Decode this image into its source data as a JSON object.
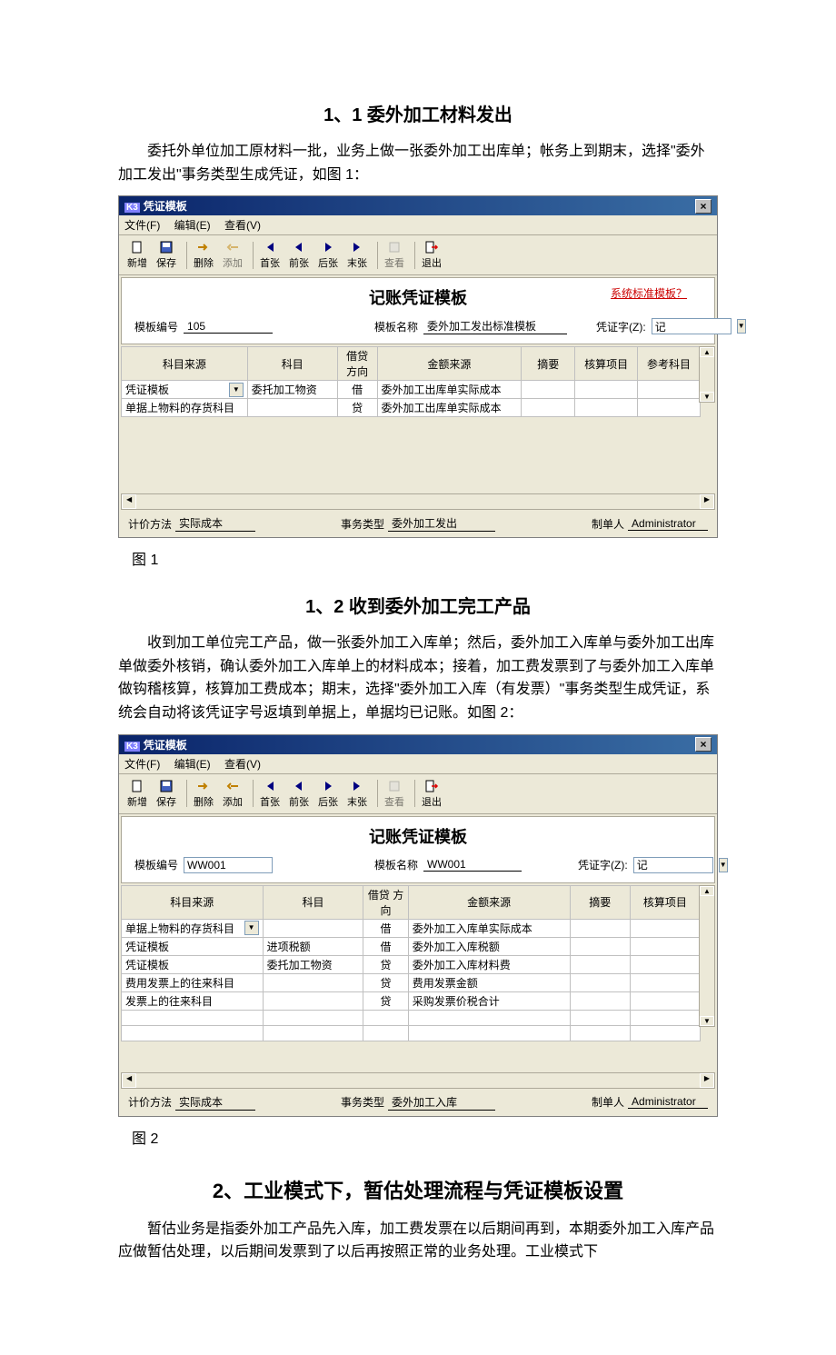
{
  "doc": {
    "heading1": "1、1 委外加工材料发出",
    "para1": "委托外单位加工原材料一批，业务上做一张委外加工出库单；帐务上到期末，选择\"委外加工发出\"事务类型生成凭证，如图 1：",
    "caption1": "图 1",
    "heading2": "1、2 收到委外加工完工产品",
    "para2": "收到加工单位完工产品，做一张委外加工入库单；然后，委外加工入库单与委外加工出库单做委外核销，确认委外加工入库单上的材料成本；接着，加工费发票到了与委外加工入库单做钩稽核算，核算加工费成本；期末，选择\"委外加工入库（有发票）\"事务类型生成凭证，系统会自动将该凭证字号返填到单据上，单据均已记账。如图 2：",
    "caption2": "图 2",
    "heading3": "2、工业模式下，暂估处理流程与凭证模板设置",
    "para3": "暂估业务是指委外加工产品先入库，加工费发票在以后期间再到，本期委外加工入库产品应做暂估处理，以后期间发票到了以后再按照正常的业务处理。工业模式下"
  },
  "app": {
    "title": "凭证模板",
    "menu": {
      "file": "文件(F)",
      "edit": "编辑(E)",
      "view": "查看(V)"
    },
    "toolbar": {
      "new": "新增",
      "save": "保存",
      "delete": "删除",
      "add": "添加",
      "first": "首张",
      "prev": "前张",
      "next": "后张",
      "last": "末张",
      "rename": "查看",
      "exit": "退出"
    },
    "bigtitle": "记账凭证模板",
    "syslink": "系统标准模板？",
    "form": {
      "templ_no_label": "模板编号",
      "templ_name_label": "模板名称",
      "voucher_word_label": "凭证字(Z):",
      "voucher_word_value": "记"
    },
    "grid_headers": {
      "subject_source": "科目来源",
      "subject": "科目",
      "dc": "借贷\n方向",
      "amount_source": "金额来源",
      "summary": "摘要",
      "account_item": "核算项目",
      "ref_subject": "参考科目"
    },
    "footer": {
      "method_label": "计价方法",
      "method_value": "实际成本",
      "type_label": "事务类型",
      "maker_label": "制单人",
      "maker_value": "Administrator"
    }
  },
  "win1": {
    "templ_no": "105",
    "templ_name": "委外加工发出标准模板",
    "rows": [
      {
        "src": "凭证模板",
        "subject": "委托加工物资",
        "dc": "借",
        "amt": "委外加工出库单实际成本"
      },
      {
        "src": "单据上物料的存货科目",
        "subject": "",
        "dc": "贷",
        "amt": "委外加工出库单实际成本"
      }
    ],
    "type_value": "委外加工发出"
  },
  "win2": {
    "templ_no": "WW001",
    "templ_name": "WW001",
    "rows": [
      {
        "src": "单据上物料的存货科目",
        "subject": "",
        "dc": "借",
        "amt": "委外加工入库单实际成本"
      },
      {
        "src": "凭证模板",
        "subject": "进项税额",
        "dc": "借",
        "amt": "委外加工入库税额"
      },
      {
        "src": "凭证模板",
        "subject": "委托加工物资",
        "dc": "贷",
        "amt": "委外加工入库材料费"
      },
      {
        "src": "费用发票上的往来科目",
        "subject": "",
        "dc": "贷",
        "amt": "费用发票金额"
      },
      {
        "src": "发票上的往来科目",
        "subject": "",
        "dc": "贷",
        "amt": "采购发票价税合计"
      }
    ],
    "type_value": "委外加工入库"
  },
  "colors": {
    "titlebar_from": "#0a246a",
    "titlebar_to": "#3a6ea5",
    "win_bg": "#ece9d8",
    "grid_border": "#c0c0c0",
    "syslink": "#cc0000"
  }
}
